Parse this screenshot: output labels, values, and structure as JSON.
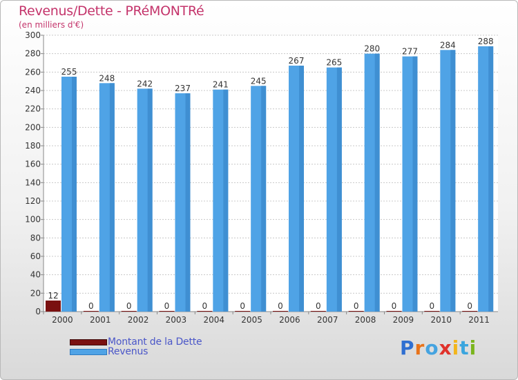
{
  "title": "Revenus/Dette - PRéMONTRé",
  "subtitle": "(en milliers d'€)",
  "logo": {
    "text": "Proxiti",
    "letter_colors": [
      "#2f6fd1",
      "#e8731a",
      "#45a3e0",
      "#e0322b",
      "#f2b51c",
      "#3aa5de",
      "#7ab51d"
    ]
  },
  "colors": {
    "dette": "#7a1010",
    "revenus": "#4fa3e6",
    "text": "#c4346b",
    "legend_text": "#4a56c8"
  },
  "chart_data": {
    "type": "bar",
    "title": "Revenus/Dette - PRéMONTRé",
    "ylabel": "(en milliers d'€)",
    "ylim": [
      0,
      300
    ],
    "yticks": [
      0,
      20,
      40,
      60,
      80,
      100,
      120,
      140,
      160,
      180,
      200,
      220,
      240,
      260,
      280,
      300
    ],
    "grid": true,
    "categories": [
      "2000",
      "2001",
      "2002",
      "2003",
      "2004",
      "2005",
      "2006",
      "2007",
      "2008",
      "2009",
      "2010",
      "2011"
    ],
    "series": [
      {
        "name": "Montant de la Dette",
        "values": [
          12,
          0,
          0,
          0,
          0,
          0,
          0,
          0,
          0,
          0,
          0,
          0
        ]
      },
      {
        "name": "Revenus",
        "values": [
          255,
          248,
          242,
          237,
          241,
          245,
          267,
          265,
          280,
          277,
          284,
          288
        ]
      }
    ]
  }
}
